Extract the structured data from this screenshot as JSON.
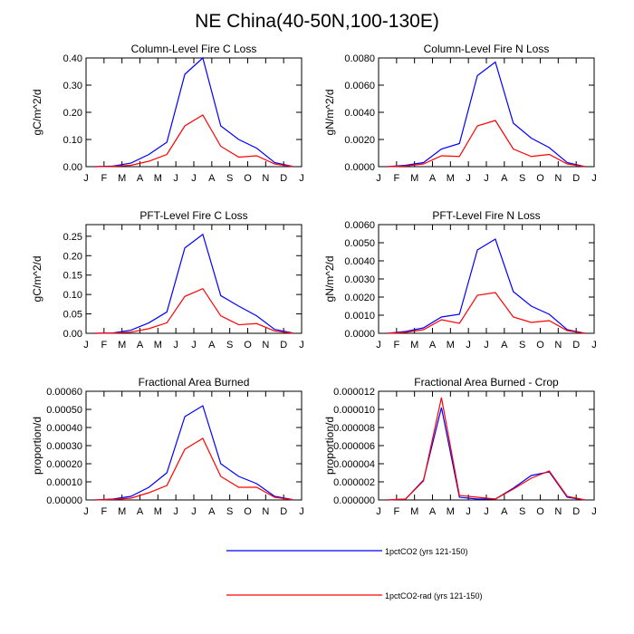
{
  "title": "NE China(40-50N,100-130E)",
  "colors": {
    "series_1": "#0000ff",
    "series_2": "#ff0000"
  },
  "legend": {
    "placement": "bottom-center",
    "items": [
      "1pctCO2 (yrs 121-150)",
      "1pctCO2-rad (yrs 121-150)"
    ]
  },
  "chart_data": [
    {
      "type": "line",
      "title": "Column-Level Fire C Loss",
      "ylabel": "gC/m^2/d",
      "xlabel": "",
      "x": [
        0.5,
        1.5,
        2.5,
        3.5,
        4.5,
        5.5,
        6.5,
        7.5,
        8.5,
        9.5,
        10.5,
        11.5
      ],
      "x_ticks": [
        "J",
        "F",
        "M",
        "A",
        "M",
        "J",
        "J",
        "A",
        "S",
        "O",
        "N",
        "D",
        "J"
      ],
      "xlim": [
        0,
        12
      ],
      "ylim": [
        0,
        0.4
      ],
      "y_ticks": [
        "0.00",
        "0.10",
        "0.20",
        "0.30",
        "0.40"
      ],
      "series": [
        {
          "name": "1pctCO2 (yrs 121-150)",
          "values": [
            0,
            0.002,
            0.013,
            0.045,
            0.09,
            0.34,
            0.4,
            0.15,
            0.1,
            0.068,
            0.015,
            0.001
          ]
        },
        {
          "name": "1pctCO2-rad (yrs 121-150)",
          "values": [
            0,
            0.001,
            0.005,
            0.02,
            0.045,
            0.15,
            0.19,
            0.075,
            0.035,
            0.04,
            0.01,
            0.0005
          ]
        }
      ]
    },
    {
      "type": "line",
      "title": "Column-Level Fire N Loss",
      "ylabel": "gN/m^2/d",
      "xlabel": "",
      "x": [
        0.5,
        1.5,
        2.5,
        3.5,
        4.5,
        5.5,
        6.5,
        7.5,
        8.5,
        9.5,
        10.5,
        11.5
      ],
      "x_ticks": [
        "J",
        "F",
        "M",
        "A",
        "M",
        "J",
        "J",
        "A",
        "S",
        "O",
        "N",
        "D",
        "J"
      ],
      "xlim": [
        0,
        12
      ],
      "ylim": [
        0,
        0.008
      ],
      "y_ticks": [
        "0.0000",
        "0.0020",
        "0.0040",
        "0.0060",
        "0.0080"
      ],
      "series": [
        {
          "name": "1pctCO2 (yrs 121-150)",
          "values": [
            0,
            0.0001,
            0.0003,
            0.0013,
            0.0017,
            0.0067,
            0.0077,
            0.0032,
            0.0021,
            0.0014,
            0.0003,
            0
          ]
        },
        {
          "name": "1pctCO2-rad (yrs 121-150)",
          "values": [
            0,
            5e-05,
            0.0002,
            0.0008,
            0.00075,
            0.003,
            0.0034,
            0.0013,
            0.00075,
            0.0009,
            0.0002,
            0
          ]
        }
      ]
    },
    {
      "type": "line",
      "title": "PFT-Level Fire C Loss",
      "ylabel": "gC/m^2/d",
      "xlabel": "",
      "x": [
        0.5,
        1.5,
        2.5,
        3.5,
        4.5,
        5.5,
        6.5,
        7.5,
        8.5,
        9.5,
        10.5,
        11.5
      ],
      "x_ticks": [
        "J",
        "F",
        "M",
        "A",
        "M",
        "J",
        "J",
        "A",
        "S",
        "O",
        "N",
        "D",
        "J"
      ],
      "xlim": [
        0,
        12
      ],
      "ylim": [
        0,
        0.28
      ],
      "y_ticks": [
        "0.00",
        "0.05",
        "0.10",
        "0.15",
        "0.20",
        "0.25"
      ],
      "series": [
        {
          "name": "1pctCO2 (yrs 121-150)",
          "values": [
            0,
            0.001,
            0.008,
            0.027,
            0.055,
            0.22,
            0.255,
            0.097,
            0.07,
            0.045,
            0.01,
            0.001
          ]
        },
        {
          "name": "1pctCO2-rad (yrs 121-150)",
          "values": [
            0,
            0.0005,
            0.003,
            0.012,
            0.027,
            0.095,
            0.115,
            0.045,
            0.022,
            0.025,
            0.006,
            0.0003
          ]
        }
      ]
    },
    {
      "type": "line",
      "title": "PFT-Level Fire N Loss",
      "ylabel": "gN/m^2/d",
      "xlabel": "",
      "x": [
        0.5,
        1.5,
        2.5,
        3.5,
        4.5,
        5.5,
        6.5,
        7.5,
        8.5,
        9.5,
        10.5,
        11.5
      ],
      "x_ticks": [
        "J",
        "F",
        "M",
        "A",
        "M",
        "J",
        "J",
        "A",
        "S",
        "O",
        "N",
        "D",
        "J"
      ],
      "xlim": [
        0,
        12
      ],
      "ylim": [
        0,
        0.006
      ],
      "y_ticks": [
        "0.0000",
        "0.0010",
        "0.0020",
        "0.0030",
        "0.0040",
        "0.0050",
        "0.0060"
      ],
      "series": [
        {
          "name": "1pctCO2 (yrs 121-150)",
          "values": [
            0,
            0.0001,
            0.0003,
            0.0009,
            0.00105,
            0.0046,
            0.0052,
            0.0023,
            0.0015,
            0.00105,
            0.0002,
            0
          ]
        },
        {
          "name": "1pctCO2-rad (yrs 121-150)",
          "values": [
            0,
            5e-05,
            0.0002,
            0.00075,
            0.00055,
            0.0021,
            0.00225,
            0.0009,
            0.0006,
            0.0007,
            0.00015,
            0
          ]
        }
      ]
    },
    {
      "type": "line",
      "title": "Fractional Area Burned",
      "ylabel": "proportion/d",
      "xlabel": "",
      "x": [
        0.5,
        1.5,
        2.5,
        3.5,
        4.5,
        5.5,
        6.5,
        7.5,
        8.5,
        9.5,
        10.5,
        11.5
      ],
      "x_ticks": [
        "J",
        "F",
        "M",
        "A",
        "M",
        "J",
        "J",
        "A",
        "S",
        "O",
        "N",
        "D",
        "J"
      ],
      "xlim": [
        0,
        12
      ],
      "ylim": [
        0,
        0.0006
      ],
      "y_ticks": [
        "0.00000",
        "0.00010",
        "0.00020",
        "0.00030",
        "0.00040",
        "0.00050",
        "0.00060"
      ],
      "series": [
        {
          "name": "1pctCO2 (yrs 121-150)",
          "values": [
            0,
            5e-06,
            2e-05,
            7e-05,
            0.00015,
            0.00046,
            0.00052,
            0.0002,
            0.00013,
            9e-05,
            2e-05,
            2e-06
          ]
        },
        {
          "name": "1pctCO2-rad (yrs 121-150)",
          "values": [
            0,
            3e-06,
            1e-05,
            4e-05,
            8e-05,
            0.00028,
            0.00034,
            0.00013,
            7e-05,
            7e-05,
            1.5e-05,
            1e-06
          ]
        }
      ]
    },
    {
      "type": "line",
      "title": "Fractional Area Burned - Crop",
      "ylabel": "proportion/d",
      "xlabel": "",
      "x": [
        0.5,
        1.5,
        2.5,
        3.5,
        4.5,
        5.5,
        6.5,
        7.5,
        8.5,
        9.5,
        10.5,
        11.5
      ],
      "x_ticks": [
        "J",
        "F",
        "M",
        "A",
        "M",
        "J",
        "J",
        "A",
        "S",
        "O",
        "N",
        "D",
        "J"
      ],
      "xlim": [
        0,
        12
      ],
      "ylim": [
        0,
        1.2e-05
      ],
      "y_ticks": [
        "0.000000",
        "0.000002",
        "0.000004",
        "0.000006",
        "0.000008",
        "0.000010",
        "0.000012"
      ],
      "series": [
        {
          "name": "1pctCO2 (yrs 121-150)",
          "values": [
            0,
            1e-07,
            2.2e-06,
            1.02e-05,
            3e-07,
            1e-07,
            1e-07,
            1.3e-06,
            2.7e-06,
            3.1e-06,
            3e-07,
            0
          ]
        },
        {
          "name": "1pctCO2-rad (yrs 121-150)",
          "values": [
            0,
            1e-07,
            2.1e-06,
            1.13e-05,
            5e-07,
            3e-07,
            1e-07,
            1.2e-06,
            2.4e-06,
            3.2e-06,
            4e-07,
            0
          ]
        }
      ]
    }
  ]
}
